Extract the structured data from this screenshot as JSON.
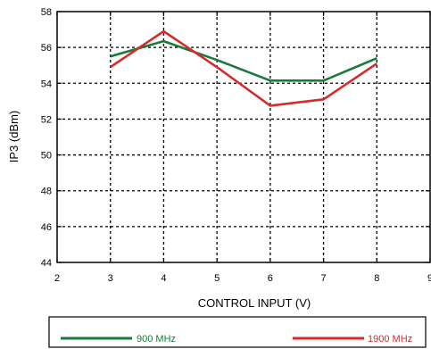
{
  "chart_data": {
    "type": "line",
    "title": "",
    "xlabel": "CONTROL INPUT (V)",
    "ylabel": "IP3 (dBm)",
    "xlim": [
      2,
      9
    ],
    "ylim": [
      44,
      58
    ],
    "xticks": [
      2,
      3,
      4,
      5,
      6,
      7,
      8,
      9
    ],
    "yticks": [
      44,
      46,
      48,
      50,
      52,
      54,
      56,
      58
    ],
    "grid": true,
    "legend_position": "bottom",
    "series": [
      {
        "name": "900 MHz",
        "color": "#1a7a3c",
        "x": [
          3,
          4,
          5,
          6,
          7,
          8
        ],
        "y": [
          55.5,
          56.35,
          55.3,
          54.15,
          54.15,
          55.4
        ]
      },
      {
        "name": "1900 MHz",
        "color": "#d62b2b",
        "x": [
          3,
          4,
          5,
          6,
          7,
          8
        ],
        "y": [
          54.9,
          56.9,
          54.9,
          52.75,
          53.1,
          55.1
        ]
      }
    ]
  }
}
